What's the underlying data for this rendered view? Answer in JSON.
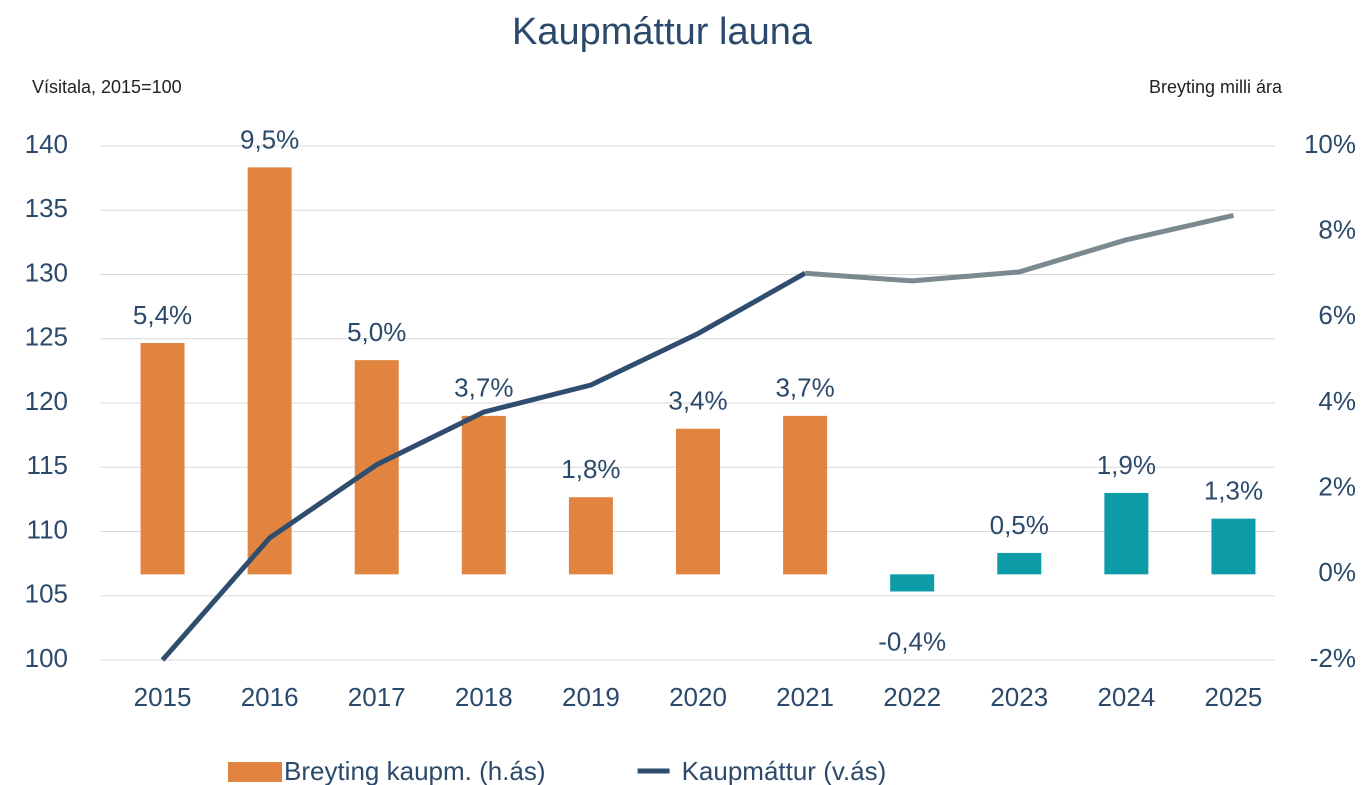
{
  "chart_data": {
    "type": "bar-line",
    "title": "Kaupmáttur launa",
    "y_label": "Vísitala, 2015=100",
    "y2_label": "Breyting milli ára",
    "categories": [
      "2015",
      "2016",
      "2017",
      "2018",
      "2019",
      "2020",
      "2021",
      "2022",
      "2023",
      "2024",
      "2025"
    ],
    "series": [
      {
        "name": "Breyting kaupm. (h.ás)",
        "type": "bar",
        "axis": "y2",
        "color": "#e0843f",
        "colors": [
          "#e0843f",
          "#e0843f",
          "#e0843f",
          "#e0843f",
          "#e0843f",
          "#e0843f",
          "#e0843f",
          "#0e9ba8",
          "#0e9ba8",
          "#0e9ba8",
          "#0e9ba8"
        ],
        "values": [
          5.4,
          9.5,
          5.0,
          3.7,
          1.8,
          3.4,
          3.7,
          -0.4,
          0.5,
          1.9,
          1.3
        ],
        "value_labels": [
          "5,4%",
          "9,5%",
          "5,0%",
          "3,7%",
          "1,8%",
          "3,4%",
          "3,7%",
          "-0,4%",
          "0,5%",
          "1,9%",
          "1,3%"
        ]
      },
      {
        "name": "Kaupmáttur (v.ás)",
        "type": "line",
        "axis": "y",
        "color": "#2f4d6e",
        "colors": [
          "#2f4d6e",
          "#2f4d6e",
          "#2f4d6e",
          "#2f4d6e",
          "#2f4d6e",
          "#2f4d6e",
          "#2f4d6e",
          "#7a8a8e",
          "#7a8a8e",
          "#7a8a8e",
          "#7a8a8e"
        ],
        "values": [
          100,
          109.5,
          115.2,
          119.3,
          121.4,
          125.4,
          130.1,
          129.5,
          130.2,
          132.7,
          134.6
        ]
      }
    ],
    "ylim": [
      100,
      140
    ],
    "yticks": [
      100,
      105,
      110,
      115,
      120,
      125,
      130,
      135,
      140
    ],
    "y2lim": [
      -2,
      10
    ],
    "y2ticks": [
      {
        "value": -2,
        "label": "-2%"
      },
      {
        "value": 0,
        "label": "0%"
      },
      {
        "value": 2,
        "label": "2%"
      },
      {
        "value": 4,
        "label": "4%"
      },
      {
        "value": 6,
        "label": "6%"
      },
      {
        "value": 8,
        "label": "8%"
      },
      {
        "value": 10,
        "label": "10%"
      }
    ],
    "grid": true,
    "legend": "bottom"
  }
}
